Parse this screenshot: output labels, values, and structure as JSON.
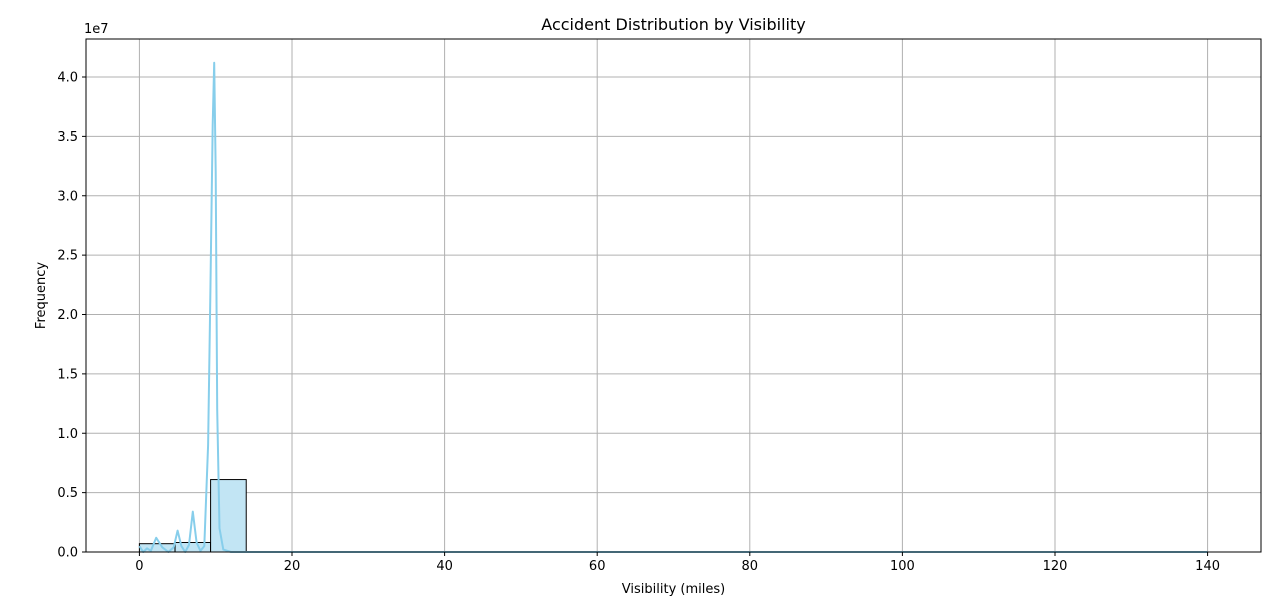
{
  "chart_data": {
    "type": "bar",
    "title": "Accident Distribution by Visibility",
    "xlabel": "Visibility (miles)",
    "ylabel": "Frequency",
    "y_offset_label": "1e7",
    "xlim": [
      -7,
      147
    ],
    "ylim": [
      0,
      4.32
    ],
    "y_unit_multiplier": 10000000,
    "xticks": [
      0,
      20,
      40,
      60,
      80,
      100,
      120,
      140
    ],
    "xtick_labels": [
      "0",
      "20",
      "40",
      "60",
      "80",
      "100",
      "120",
      "140"
    ],
    "yticks": [
      0,
      0.5,
      1.0,
      1.5,
      2.0,
      2.5,
      3.0,
      3.5,
      4.0
    ],
    "ytick_labels": [
      "0.0",
      "0.5",
      "1.0",
      "1.5",
      "2.0",
      "2.5",
      "3.0",
      "3.5",
      "4.0"
    ],
    "grid": true,
    "colors": {
      "bar_fill": "#c2e5f4",
      "bar_edge": "#000000",
      "kde_line": "#87ceeb"
    },
    "bins": [
      {
        "x0": 0.0,
        "x1": 4.67,
        "value": 0.07
      },
      {
        "x0": 4.67,
        "x1": 9.33,
        "value": 0.08
      },
      {
        "x0": 9.33,
        "x1": 14.0,
        "value": 0.61
      },
      {
        "x0": 14.0,
        "x1": 18.67,
        "value": 0.002
      },
      {
        "x0": 18.67,
        "x1": 23.33,
        "value": 0.001
      },
      {
        "x0": 23.33,
        "x1": 28.0,
        "value": 0.0005
      },
      {
        "x0": 28.0,
        "x1": 32.67,
        "value": 0.0003
      },
      {
        "x0": 32.67,
        "x1": 37.33,
        "value": 0.0002
      },
      {
        "x0": 37.33,
        "x1": 42.0,
        "value": 0.0001
      },
      {
        "x0": 42.0,
        "x1": 46.67,
        "value": 0.0001
      },
      {
        "x0": 46.67,
        "x1": 51.33,
        "value": 0.0002
      },
      {
        "x0": 51.33,
        "x1": 56.0,
        "value": 0.0
      },
      {
        "x0": 56.0,
        "x1": 60.67,
        "value": 0.0
      },
      {
        "x0": 60.67,
        "x1": 65.33,
        "value": 0.0
      },
      {
        "x0": 65.33,
        "x1": 70.0,
        "value": 0.0
      },
      {
        "x0": 70.0,
        "x1": 74.67,
        "value": 0.0
      },
      {
        "x0": 74.67,
        "x1": 79.33,
        "value": 0.0
      },
      {
        "x0": 79.33,
        "x1": 84.0,
        "value": 0.0
      },
      {
        "x0": 84.0,
        "x1": 88.67,
        "value": 0.0
      },
      {
        "x0": 88.67,
        "x1": 93.33,
        "value": 0.0
      },
      {
        "x0": 93.33,
        "x1": 98.0,
        "value": 0.0
      },
      {
        "x0": 98.0,
        "x1": 102.67,
        "value": 0.0
      },
      {
        "x0": 102.67,
        "x1": 107.33,
        "value": 0.0
      },
      {
        "x0": 107.33,
        "x1": 112.0,
        "value": 0.0
      },
      {
        "x0": 112.0,
        "x1": 116.67,
        "value": 0.0
      },
      {
        "x0": 116.67,
        "x1": 121.33,
        "value": 0.0
      },
      {
        "x0": 121.33,
        "x1": 126.0,
        "value": 0.0
      },
      {
        "x0": 126.0,
        "x1": 130.67,
        "value": 0.0
      },
      {
        "x0": 130.67,
        "x1": 135.33,
        "value": 0.0
      },
      {
        "x0": 135.33,
        "x1": 140.0,
        "value": 0.0
      }
    ],
    "kde": {
      "x": [
        0.0,
        0.5,
        1.0,
        1.5,
        2.2,
        3.0,
        3.8,
        4.5,
        5.0,
        5.5,
        6.0,
        6.5,
        7.0,
        7.5,
        8.0,
        8.5,
        9.0,
        9.3,
        9.6,
        9.8,
        10.0,
        10.2,
        10.5,
        11.0,
        12.0,
        14.0,
        20.0,
        40.0,
        60.0,
        80.0,
        100.0,
        120.0,
        140.0
      ],
      "y": [
        0.05,
        0.0,
        0.03,
        0.01,
        0.12,
        0.04,
        0.0,
        0.04,
        0.18,
        0.05,
        0.0,
        0.06,
        0.34,
        0.08,
        0.01,
        0.05,
        0.9,
        2.2,
        3.6,
        4.12,
        3.2,
        1.2,
        0.2,
        0.02,
        0.0,
        0.0,
        0.0,
        0.0,
        0.0,
        0.0,
        0.0,
        0.0,
        0.0
      ]
    }
  }
}
